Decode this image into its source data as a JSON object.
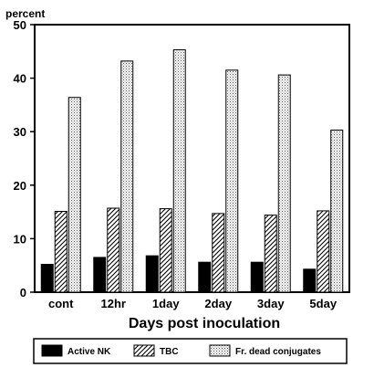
{
  "chart_data": {
    "type": "bar",
    "title": "",
    "ylabel": "percent",
    "xlabel": "Days post inoculation",
    "categories": [
      "cont",
      "12hr",
      "1day",
      "2day",
      "3day",
      "5day"
    ],
    "ylim": [
      0,
      50
    ],
    "yticks": [
      0,
      10,
      20,
      30,
      40,
      50
    ],
    "grid": false,
    "legend_position": "bottom",
    "series": [
      {
        "name": "Active NK",
        "values": [
          5.2,
          6.5,
          6.8,
          5.6,
          5.6,
          4.3
        ],
        "pattern": "solid-black"
      },
      {
        "name": "TBC",
        "values": [
          15.1,
          15.7,
          15.6,
          14.7,
          14.4,
          15.2
        ],
        "pattern": "diagonal-hatch"
      },
      {
        "name": "Fr. dead conjugates",
        "values": [
          36.4,
          43.2,
          45.3,
          41.5,
          40.6,
          30.3
        ],
        "pattern": "stipple"
      }
    ]
  }
}
